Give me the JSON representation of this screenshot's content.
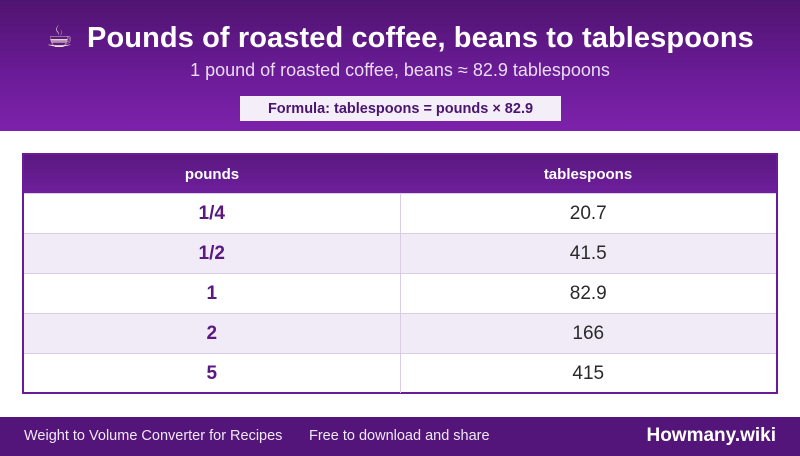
{
  "header": {
    "icon": "coffee-cup-icon",
    "icon_glyph": "☕",
    "title": "Pounds of roasted coffee, beans to tablespoons",
    "subtitle": "1 pound of roasted coffee, beans ≈ 82.9 tablespoons",
    "formula": "Formula: tablespoons = pounds × 82.9"
  },
  "table": {
    "columns": [
      "pounds",
      "tablespoons"
    ],
    "rows": [
      [
        "1/4",
        "20.7"
      ],
      [
        "1/2",
        "41.5"
      ],
      [
        "1",
        "82.9"
      ],
      [
        "2",
        "166"
      ],
      [
        "5",
        "415"
      ]
    ]
  },
  "footer": {
    "left": "Weight to Volume Converter for Recipes",
    "middle": "Free to download and share",
    "brand": "Howmany.wiki"
  },
  "colors": {
    "header_purple": "#6a1b96",
    "accent_purple": "#5a1880",
    "row_alt": "#f1ebf7",
    "footer_purple": "#54157a"
  }
}
